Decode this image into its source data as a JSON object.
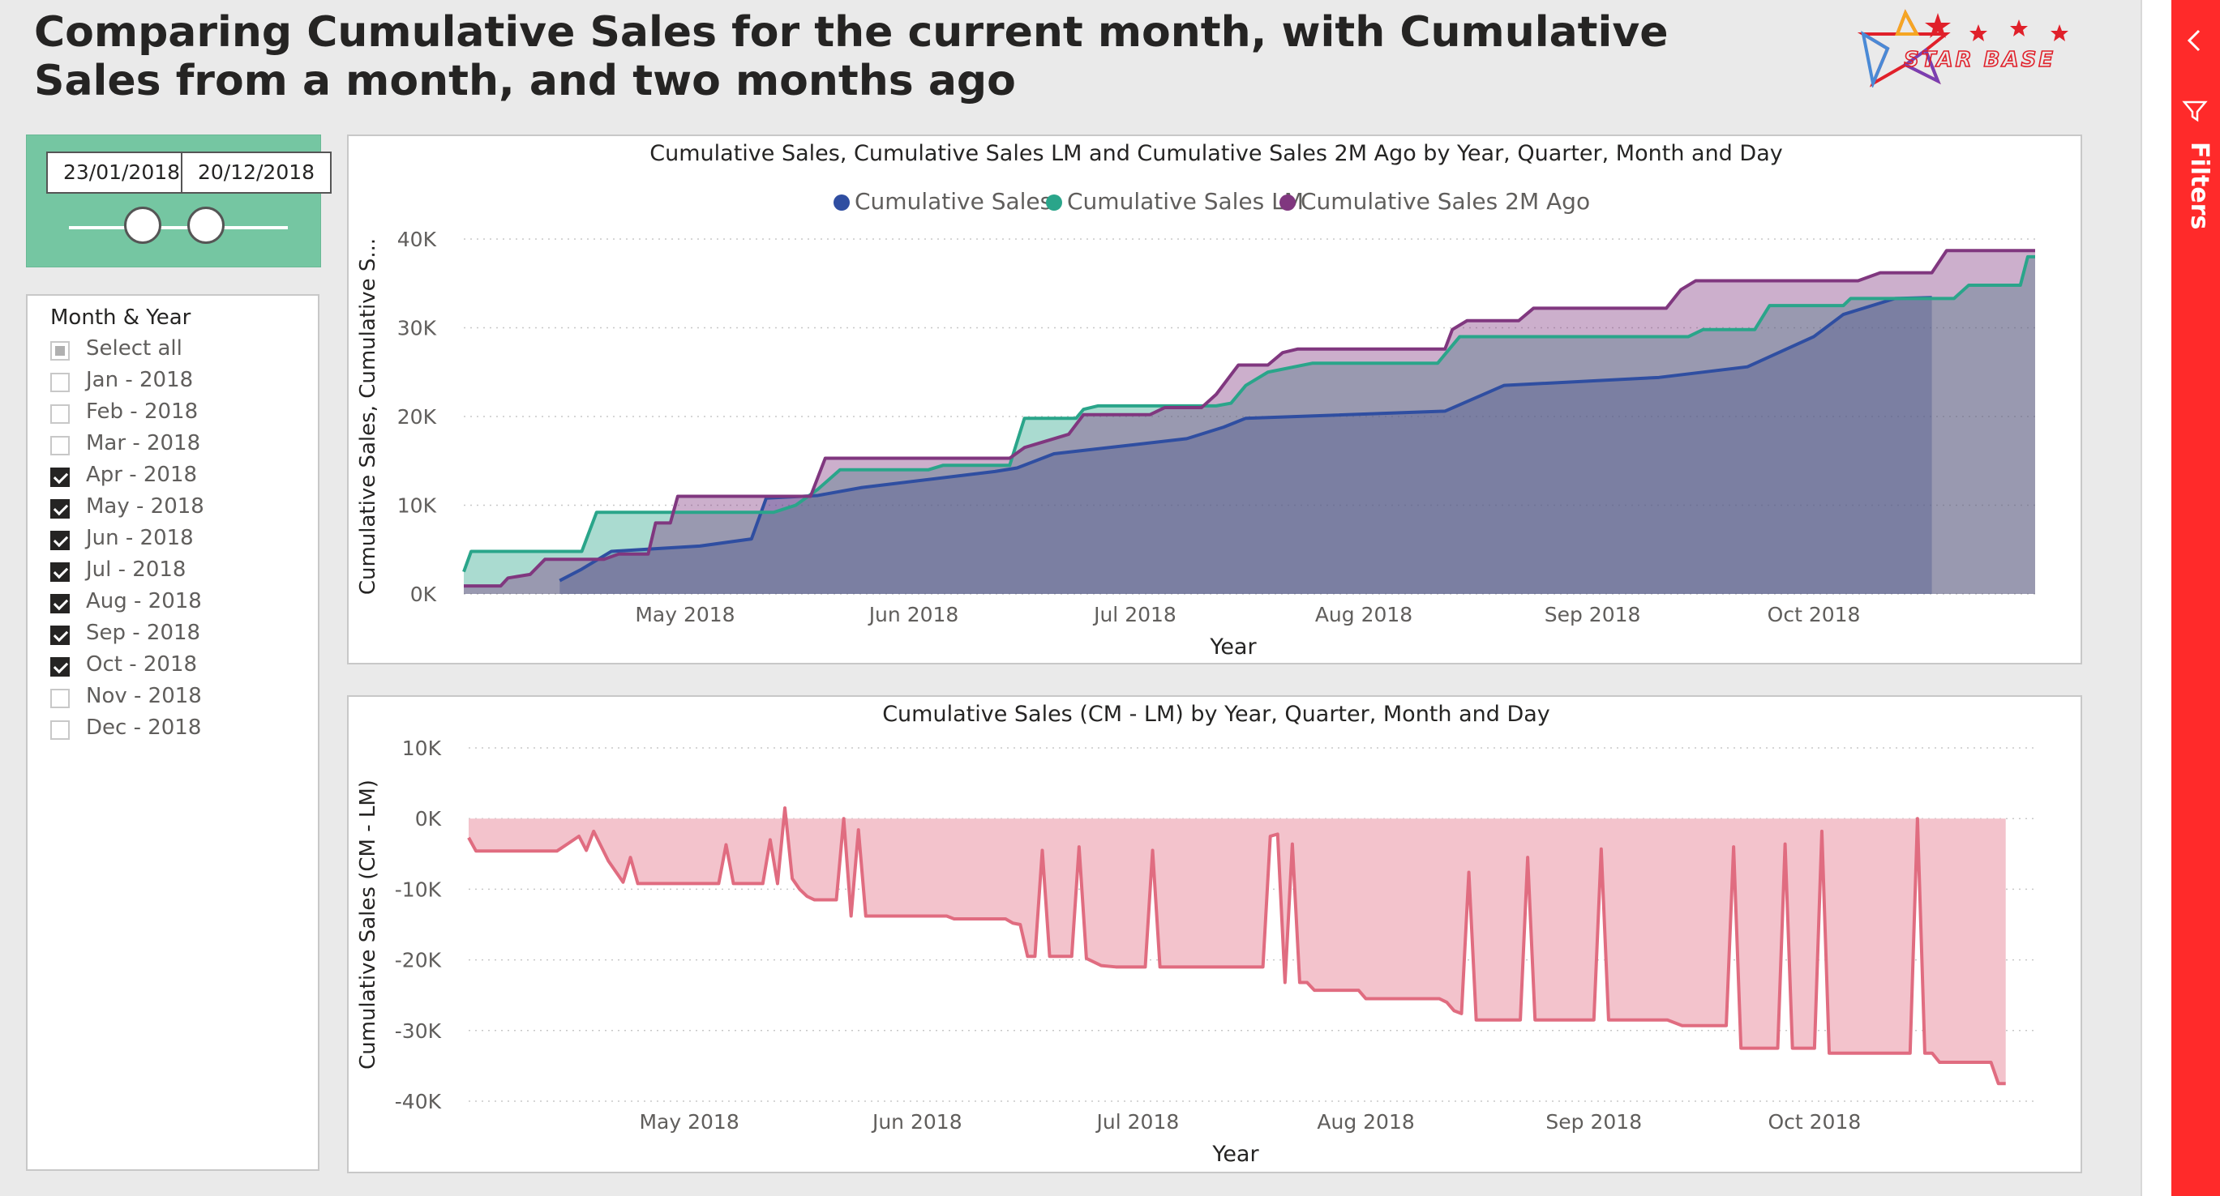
{
  "header": {
    "title": "Comparing Cumulative Sales for the current month, with Cumulative Sales from a month, and two months ago",
    "logo_text": "STAR BASE"
  },
  "filters_pane": {
    "label": "Filters"
  },
  "date_slicer": {
    "start": "23/01/2018",
    "end": "20/12/2018"
  },
  "month_slicer": {
    "title": "Month & Year",
    "select_all": "Select all",
    "items": [
      {
        "label": "Jan - 2018",
        "checked": false
      },
      {
        "label": "Feb - 2018",
        "checked": false
      },
      {
        "label": "Mar - 2018",
        "checked": false
      },
      {
        "label": "Apr - 2018",
        "checked": true
      },
      {
        "label": "May - 2018",
        "checked": true
      },
      {
        "label": "Jun - 2018",
        "checked": true
      },
      {
        "label": "Jul - 2018",
        "checked": true
      },
      {
        "label": "Aug - 2018",
        "checked": true
      },
      {
        "label": "Sep - 2018",
        "checked": true
      },
      {
        "label": "Oct - 2018",
        "checked": true
      },
      {
        "label": "Nov - 2018",
        "checked": false
      },
      {
        "label": "Dec - 2018",
        "checked": false
      }
    ]
  },
  "colors": {
    "cumulative_sales": "#2f4ea1",
    "cumulative_sales_lm": "#2aa58a",
    "cumulative_sales_2m": "#80377f",
    "diff": "#e06c80",
    "diff_fill": "#f3c3cc",
    "filters_red": "#ff2a2a",
    "slicer_green": "#75c6a2"
  },
  "chart_data": [
    {
      "type": "area",
      "title": "Cumulative Sales, Cumulative Sales LM and Cumulative Sales 2M Ago by Year, Quarter, Month and Day",
      "xlabel": "Year",
      "ylabel": "Cumulative Sales, Cumulative S...",
      "ylim": [
        0,
        40000
      ],
      "yticks": [
        0,
        10000,
        20000,
        30000,
        40000
      ],
      "ytick_labels": [
        "0K",
        "10K",
        "20K",
        "30K",
        "40K"
      ],
      "xlim": [
        "2018-04-01",
        "2018-10-31"
      ],
      "xticks": [
        {
          "date": "2018-05-01",
          "label": "May 2018"
        },
        {
          "date": "2018-06-01",
          "label": "Jun 2018"
        },
        {
          "date": "2018-07-01",
          "label": "Jul 2018"
        },
        {
          "date": "2018-08-01",
          "label": "Aug 2018"
        },
        {
          "date": "2018-09-01",
          "label": "Sep 2018"
        },
        {
          "date": "2018-10-01",
          "label": "Oct 2018"
        }
      ],
      "grid": true,
      "legend_position": "top-center",
      "series": [
        {
          "name": "Cumulative Sales",
          "color": "#2f4ea1",
          "points": [
            [
              "2018-04-14",
              1500
            ],
            [
              "2018-04-17",
              2800
            ],
            [
              "2018-04-21",
              4800
            ],
            [
              "2018-04-25",
              5000
            ],
            [
              "2018-05-03",
              5400
            ],
            [
              "2018-05-10",
              6200
            ],
            [
              "2018-05-12",
              10800
            ],
            [
              "2018-05-19",
              11100
            ],
            [
              "2018-05-25",
              12000
            ],
            [
              "2018-06-12",
              13800
            ],
            [
              "2018-06-15",
              14200
            ],
            [
              "2018-06-20",
              15800
            ],
            [
              "2018-07-08",
              17500
            ],
            [
              "2018-07-13",
              18800
            ],
            [
              "2018-07-16",
              19800
            ],
            [
              "2018-08-12",
              20600
            ],
            [
              "2018-08-20",
              23500
            ],
            [
              "2018-09-10",
              24400
            ],
            [
              "2018-09-22",
              25600
            ],
            [
              "2018-10-01",
              29000
            ],
            [
              "2018-10-05",
              31500
            ],
            [
              "2018-10-12",
              33300
            ],
            [
              "2018-10-17",
              33400
            ]
          ]
        },
        {
          "name": "Cumulative Sales LM",
          "color": "#2aa58a",
          "points": [
            [
              "2018-04-01",
              2500
            ],
            [
              "2018-04-02",
              4800
            ],
            [
              "2018-04-17",
              4800
            ],
            [
              "2018-04-19",
              9200
            ],
            [
              "2018-05-13",
              9200
            ],
            [
              "2018-05-16",
              10000
            ],
            [
              "2018-05-19",
              11800
            ],
            [
              "2018-05-22",
              14000
            ],
            [
              "2018-06-03",
              14000
            ],
            [
              "2018-06-05",
              14500
            ],
            [
              "2018-06-14",
              14500
            ],
            [
              "2018-06-16",
              19800
            ],
            [
              "2018-06-23",
              19800
            ],
            [
              "2018-06-24",
              20800
            ],
            [
              "2018-06-26",
              21200
            ],
            [
              "2018-07-12",
              21200
            ],
            [
              "2018-07-14",
              21500
            ],
            [
              "2018-07-16",
              23500
            ],
            [
              "2018-07-19",
              25000
            ],
            [
              "2018-07-25",
              26000
            ],
            [
              "2018-08-11",
              26000
            ],
            [
              "2018-08-14",
              29000
            ],
            [
              "2018-09-14",
              29000
            ],
            [
              "2018-09-16",
              29800
            ],
            [
              "2018-09-23",
              29800
            ],
            [
              "2018-09-25",
              32500
            ],
            [
              "2018-10-05",
              32500
            ],
            [
              "2018-10-06",
              33300
            ],
            [
              "2018-10-20",
              33300
            ],
            [
              "2018-10-22",
              34800
            ],
            [
              "2018-10-29",
              34800
            ],
            [
              "2018-10-30",
              38000
            ],
            [
              "2018-10-31",
              38000
            ]
          ]
        },
        {
          "name": "Cumulative Sales 2M Ago",
          "color": "#80377f",
          "points": [
            [
              "2018-04-01",
              900
            ],
            [
              "2018-04-06",
              900
            ],
            [
              "2018-04-07",
              1800
            ],
            [
              "2018-04-10",
              2200
            ],
            [
              "2018-04-12",
              3900
            ],
            [
              "2018-04-20",
              3900
            ],
            [
              "2018-04-22",
              4500
            ],
            [
              "2018-04-26",
              4500
            ],
            [
              "2018-04-27",
              8000
            ],
            [
              "2018-04-29",
              8000
            ],
            [
              "2018-04-30",
              11000
            ],
            [
              "2018-05-18",
              11000
            ],
            [
              "2018-05-20",
              15300
            ],
            [
              "2018-06-14",
              15300
            ],
            [
              "2018-06-16",
              16500
            ],
            [
              "2018-06-22",
              18000
            ],
            [
              "2018-06-24",
              20200
            ],
            [
              "2018-07-03",
              20200
            ],
            [
              "2018-07-05",
              21000
            ],
            [
              "2018-07-10",
              21000
            ],
            [
              "2018-07-12",
              22500
            ],
            [
              "2018-07-15",
              25800
            ],
            [
              "2018-07-19",
              25800
            ],
            [
              "2018-07-21",
              27200
            ],
            [
              "2018-07-23",
              27600
            ],
            [
              "2018-08-12",
              27600
            ],
            [
              "2018-08-13",
              29800
            ],
            [
              "2018-08-15",
              30800
            ],
            [
              "2018-08-22",
              30800
            ],
            [
              "2018-08-24",
              32200
            ],
            [
              "2018-09-11",
              32200
            ],
            [
              "2018-09-13",
              34300
            ],
            [
              "2018-09-15",
              35300
            ],
            [
              "2018-10-07",
              35300
            ],
            [
              "2018-10-10",
              36200
            ],
            [
              "2018-10-17",
              36200
            ],
            [
              "2018-10-19",
              38700
            ],
            [
              "2018-10-31",
              38700
            ]
          ]
        }
      ]
    },
    {
      "type": "area",
      "title": "Cumulative Sales (CM - LM) by Year, Quarter, Month and Day",
      "xlabel": "Year",
      "ylabel": "Cumulative Sales (CM - LM)",
      "ylim": [
        -40000,
        10000
      ],
      "yticks": [
        -40000,
        -30000,
        -20000,
        -10000,
        0,
        10000
      ],
      "ytick_labels": [
        "-40K",
        "-30K",
        "-20K",
        "-10K",
        "0K",
        "10K"
      ],
      "xlim": [
        "2018-04-01",
        "2018-10-31"
      ],
      "xticks": [
        {
          "date": "2018-05-01",
          "label": "May 2018"
        },
        {
          "date": "2018-06-01",
          "label": "Jun 2018"
        },
        {
          "date": "2018-07-01",
          "label": "Jul 2018"
        },
        {
          "date": "2018-08-01",
          "label": "Aug 2018"
        },
        {
          "date": "2018-09-01",
          "label": "Sep 2018"
        },
        {
          "date": "2018-10-01",
          "label": "Oct 2018"
        }
      ],
      "grid": true,
      "series": [
        {
          "name": "",
          "color": "#e06c80",
          "points": [
            [
              "2018-04-01",
              -2700
            ],
            [
              "2018-04-02",
              -4600
            ],
            [
              "2018-04-13",
              -4600
            ],
            [
              "2018-04-15",
              -3200
            ],
            [
              "2018-04-16",
              -2500
            ],
            [
              "2018-04-17",
              -4500
            ],
            [
              "2018-04-18",
              -1800
            ],
            [
              "2018-04-20",
              -6000
            ],
            [
              "2018-04-21",
              -7500
            ],
            [
              "2018-04-22",
              -9000
            ],
            [
              "2018-04-23",
              -5500
            ],
            [
              "2018-04-24",
              -9200
            ],
            [
              "2018-05-05",
              -9200
            ],
            [
              "2018-05-06",
              -3700
            ],
            [
              "2018-05-07",
              -9200
            ],
            [
              "2018-05-11",
              -9200
            ],
            [
              "2018-05-12",
              -3000
            ],
            [
              "2018-05-13",
              -9200
            ],
            [
              "2018-05-14",
              1500
            ],
            [
              "2018-05-15",
              -8500
            ],
            [
              "2018-05-16",
              -10000
            ],
            [
              "2018-05-17",
              -11000
            ],
            [
              "2018-05-18",
              -11500
            ],
            [
              "2018-05-21",
              -11500
            ],
            [
              "2018-05-22",
              0
            ],
            [
              "2018-05-23",
              -13800
            ],
            [
              "2018-05-24",
              -1600
            ],
            [
              "2018-05-25",
              -13800
            ],
            [
              "2018-06-05",
              -13800
            ],
            [
              "2018-06-06",
              -14200
            ],
            [
              "2018-06-13",
              -14200
            ],
            [
              "2018-06-14",
              -14800
            ],
            [
              "2018-06-15",
              -15000
            ],
            [
              "2018-06-16",
              -19500
            ],
            [
              "2018-06-17",
              -19500
            ],
            [
              "2018-06-18",
              -4500
            ],
            [
              "2018-06-19",
              -19500
            ],
            [
              "2018-06-22",
              -19500
            ],
            [
              "2018-06-23",
              -4000
            ],
            [
              "2018-06-24",
              -19800
            ],
            [
              "2018-06-26",
              -20800
            ],
            [
              "2018-06-28",
              -21000
            ],
            [
              "2018-07-02",
              -21000
            ],
            [
              "2018-07-03",
              -4500
            ],
            [
              "2018-07-04",
              -21000
            ],
            [
              "2018-07-16",
              -21000
            ],
            [
              "2018-07-18",
              -21000
            ],
            [
              "2018-07-19",
              -2500
            ],
            [
              "2018-07-20",
              -2200
            ],
            [
              "2018-07-21",
              -23200
            ],
            [
              "2018-07-22",
              -3600
            ],
            [
              "2018-07-23",
              -23200
            ],
            [
              "2018-07-24",
              -23200
            ],
            [
              "2018-07-25",
              -24300
            ],
            [
              "2018-07-31",
              -24300
            ],
            [
              "2018-08-01",
              -25500
            ],
            [
              "2018-08-11",
              -25500
            ],
            [
              "2018-08-12",
              -26000
            ],
            [
              "2018-08-13",
              -27200
            ],
            [
              "2018-08-14",
              -27600
            ],
            [
              "2018-08-15",
              -7600
            ],
            [
              "2018-08-16",
              -28500
            ],
            [
              "2018-08-22",
              -28500
            ],
            [
              "2018-08-23",
              -5500
            ],
            [
              "2018-08-24",
              -28500
            ],
            [
              "2018-09-01",
              -28500
            ],
            [
              "2018-09-02",
              -4300
            ],
            [
              "2018-09-03",
              -28500
            ],
            [
              "2018-09-11",
              -28500
            ],
            [
              "2018-09-13",
              -29300
            ],
            [
              "2018-09-19",
              -29300
            ],
            [
              "2018-09-20",
              -4000
            ],
            [
              "2018-09-21",
              -32500
            ],
            [
              "2018-09-26",
              -32500
            ],
            [
              "2018-09-27",
              -3600
            ],
            [
              "2018-09-28",
              -32500
            ],
            [
              "2018-10-01",
              -32500
            ],
            [
              "2018-10-02",
              -1800
            ],
            [
              "2018-10-03",
              -33200
            ],
            [
              "2018-10-14",
              -33200
            ],
            [
              "2018-10-15",
              0
            ],
            [
              "2018-10-16",
              -33200
            ],
            [
              "2018-10-17",
              -33200
            ],
            [
              "2018-10-18",
              -34500
            ],
            [
              "2018-10-25",
              -34500
            ],
            [
              "2018-10-26",
              -37500
            ],
            [
              "2018-10-27",
              -37500
            ]
          ]
        }
      ]
    }
  ]
}
